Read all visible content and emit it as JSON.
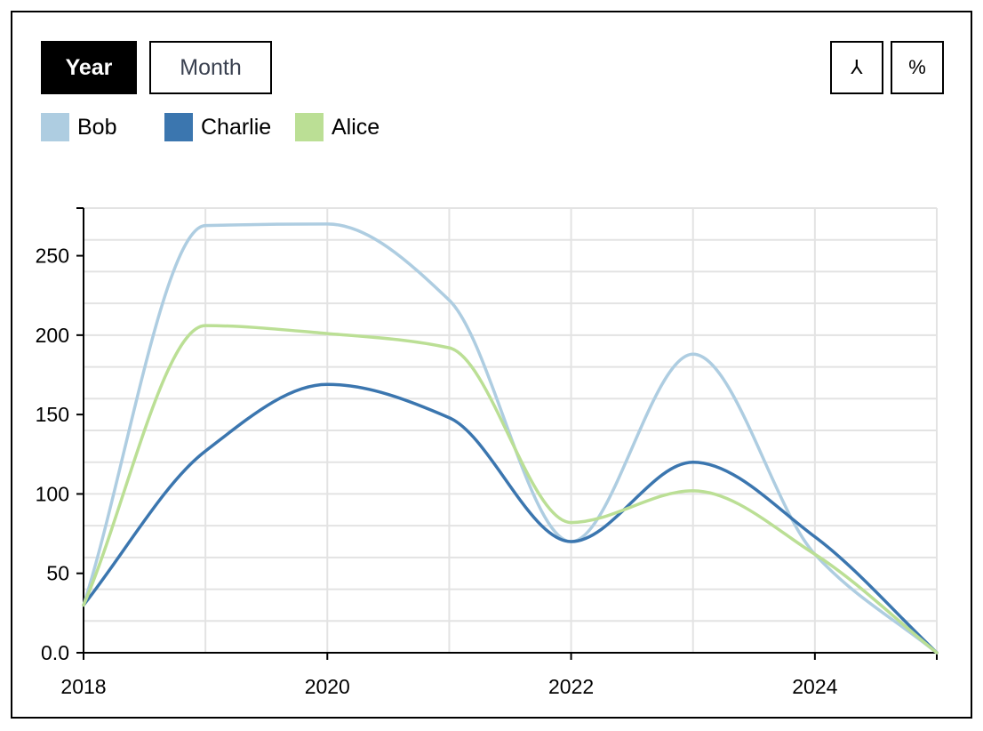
{
  "controls": {
    "year_label": "Year",
    "month_label": "Month",
    "stack_icon_glyph": "⅄",
    "percent_icon_glyph": "%"
  },
  "colors": {
    "bob": "#aecde1",
    "charlie": "#3b76af",
    "alice": "#bbdf95",
    "grid": "#e3e3e3",
    "axis": "#000000"
  },
  "chart_data": {
    "type": "line",
    "x": [
      2018,
      2019,
      2020,
      2021,
      2022,
      2023,
      2024,
      2025
    ],
    "series": [
      {
        "name": "Bob",
        "values": [
          30,
          269,
          270,
          222,
          70,
          188,
          62,
          0
        ]
      },
      {
        "name": "Charlie",
        "values": [
          30,
          127,
          169,
          148,
          70,
          120,
          73,
          0
        ]
      },
      {
        "name": "Alice",
        "values": [
          30,
          206,
          201,
          192,
          82,
          102,
          62,
          0
        ]
      }
    ],
    "xlim": [
      2018,
      2025
    ],
    "ylim": [
      0,
      280
    ],
    "x_ticks": [
      "2018",
      "2020",
      "2022",
      "2024"
    ],
    "y_ticks": [
      "0.0",
      "50",
      "100",
      "150",
      "200",
      "250"
    ],
    "grid": true,
    "legend_position": "top-left",
    "interpolation": "smooth"
  }
}
